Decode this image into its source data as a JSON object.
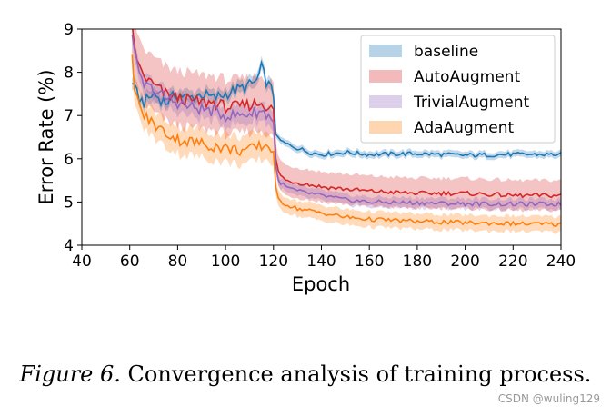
{
  "chart_data": {
    "type": "line",
    "xlabel": "Epoch",
    "ylabel": "Error Rate (%)",
    "xlim": [
      40,
      240
    ],
    "ylim": [
      4,
      9
    ],
    "x_ticks": [
      40,
      60,
      80,
      100,
      120,
      140,
      160,
      180,
      200,
      220,
      240
    ],
    "y_ticks": [
      4,
      5,
      6,
      7,
      8,
      9
    ],
    "grid": false,
    "legend_position": "top-right",
    "series": [
      {
        "name": "baseline",
        "color": "#1f77b4",
        "x": [
          61,
          62,
          64,
          66,
          70,
          75,
          80,
          85,
          90,
          95,
          100,
          105,
          110,
          113,
          115,
          117,
          118,
          120,
          121,
          122,
          125,
          130,
          135,
          140,
          150,
          160,
          180,
          200,
          220,
          240
        ],
        "y": [
          7.8,
          7.6,
          7.4,
          7.3,
          7.5,
          7.3,
          7.5,
          7.4,
          7.5,
          7.4,
          7.5,
          7.6,
          7.7,
          7.8,
          8.1,
          7.8,
          7.7,
          7.5,
          6.6,
          6.45,
          6.35,
          6.25,
          6.15,
          6.1,
          6.15,
          6.1,
          6.12,
          6.08,
          6.1,
          6.1
        ],
        "band": 0.08
      },
      {
        "name": "AutoAugment",
        "color": "#d62728",
        "x": [
          61,
          62,
          64,
          66,
          70,
          75,
          80,
          85,
          90,
          95,
          100,
          105,
          110,
          115,
          118,
          120,
          121,
          122,
          125,
          130,
          135,
          140,
          150,
          160,
          180,
          200,
          220,
          240
        ],
        "y": [
          9.0,
          8.6,
          8.1,
          7.9,
          7.7,
          7.5,
          7.4,
          7.35,
          7.3,
          7.3,
          7.2,
          7.2,
          7.25,
          7.3,
          7.2,
          7.1,
          6.0,
          5.7,
          5.5,
          5.45,
          5.4,
          5.35,
          5.3,
          5.25,
          5.2,
          5.2,
          5.15,
          5.15
        ],
        "band": 0.35
      },
      {
        "name": "TrivialAugment",
        "color": "#9467bd",
        "x": [
          61,
          62,
          64,
          66,
          70,
          75,
          80,
          85,
          90,
          95,
          100,
          105,
          110,
          115,
          118,
          120,
          121,
          122,
          125,
          130,
          135,
          140,
          150,
          160,
          180,
          200,
          220,
          240
        ],
        "y": [
          9.0,
          8.4,
          7.9,
          7.7,
          7.6,
          7.4,
          7.3,
          7.2,
          7.15,
          7.1,
          7.0,
          7.0,
          7.05,
          7.1,
          7.0,
          6.9,
          5.8,
          5.5,
          5.35,
          5.25,
          5.2,
          5.15,
          5.05,
          5.0,
          4.98,
          4.96,
          4.95,
          4.95
        ],
        "band": 0.12
      },
      {
        "name": "AdaAugment",
        "color": "#ff7f0e",
        "x": [
          61,
          62,
          64,
          66,
          70,
          75,
          80,
          85,
          90,
          95,
          100,
          105,
          110,
          115,
          118,
          120,
          121,
          122,
          125,
          130,
          135,
          140,
          150,
          160,
          180,
          200,
          220,
          240
        ],
        "y": [
          8.3,
          7.7,
          7.2,
          7.0,
          6.8,
          6.6,
          6.45,
          6.4,
          6.35,
          6.3,
          6.25,
          6.2,
          6.2,
          6.3,
          6.3,
          6.2,
          5.3,
          5.05,
          4.95,
          4.85,
          4.8,
          4.75,
          4.65,
          4.6,
          4.55,
          4.52,
          4.5,
          4.48
        ],
        "band": 0.18
      }
    ]
  },
  "caption": {
    "figure_label": "Figure 6.",
    "text": "Convergence analysis of training process."
  },
  "watermark": "CSDN @wuling129"
}
